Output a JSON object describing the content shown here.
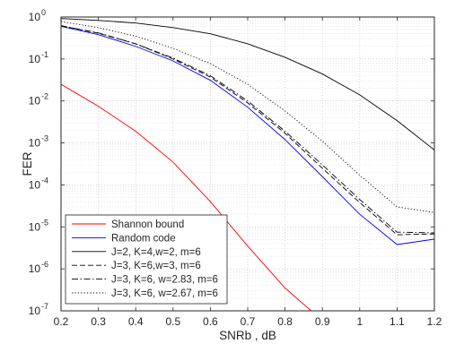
{
  "chart_data": {
    "type": "line",
    "title": "",
    "xlabel": "SNRb , dB",
    "ylabel": "FER",
    "xlim": [
      0.2,
      1.2
    ],
    "ylim_log10": [
      -7,
      0
    ],
    "yscale": "log",
    "grid": "major and minor, dotted",
    "legend_position": "lower-left",
    "x_ticks": [
      "0.2",
      "0.3",
      "0.4",
      "0.5",
      "0.6",
      "0.7",
      "0.8",
      "0.9",
      "1",
      "1.1",
      "1.2"
    ],
    "y_ticks": [
      {
        "base": "10",
        "exp": "0"
      },
      {
        "base": "10",
        "exp": "-1"
      },
      {
        "base": "10",
        "exp": "-2"
      },
      {
        "base": "10",
        "exp": "-3"
      },
      {
        "base": "10",
        "exp": "-4"
      },
      {
        "base": "10",
        "exp": "-5"
      },
      {
        "base": "10",
        "exp": "-6"
      },
      {
        "base": "10",
        "exp": "-7"
      }
    ],
    "series": [
      {
        "name": "Shannon bound",
        "color": "#ff0000",
        "dash": "solid",
        "x": [
          0.2,
          0.3,
          0.4,
          0.5,
          0.6,
          0.7,
          0.8,
          0.87
        ],
        "y": [
          0.025,
          0.0075,
          0.0019,
          0.00035,
          4e-05,
          3.5e-06,
          3.5e-07,
          1e-07
        ]
      },
      {
        "name": "Random code",
        "color": "#0000ff",
        "dash": "solid",
        "x": [
          0.2,
          0.3,
          0.4,
          0.5,
          0.6,
          0.7,
          0.8,
          0.9,
          1.0,
          1.1,
          1.2
        ],
        "y": [
          0.6,
          0.38,
          0.2,
          0.09,
          0.031,
          0.0071,
          0.0012,
          0.000157,
          2e-05,
          3.8e-06,
          5.1e-06
        ]
      },
      {
        "name": "J=2, K=4,w=2, m=6",
        "color": "#000000",
        "dash": "solid",
        "x": [
          0.2,
          0.3,
          0.4,
          0.5,
          0.6,
          0.7,
          0.8,
          0.9,
          1.0,
          1.1,
          1.2
        ],
        "y": [
          0.92,
          0.83,
          0.72,
          0.56,
          0.4,
          0.23,
          0.11,
          0.044,
          0.014,
          0.0034,
          0.00068
        ]
      },
      {
        "name": "J=3, K=6,w=3, m=6",
        "color": "#000000",
        "dash": "dashed",
        "x": [
          0.2,
          0.3,
          0.4,
          0.5,
          0.6,
          0.7,
          0.8,
          0.9,
          1.0,
          1.1,
          1.2
        ],
        "y": [
          0.62,
          0.41,
          0.23,
          0.1,
          0.037,
          0.009,
          0.0017,
          0.00025,
          3.8e-05,
          6.5e-06,
          6.8e-06
        ]
      },
      {
        "name": "J=3,  K=6,  w=2.83, m=6",
        "color": "#000000",
        "dash": "dashdot",
        "x": [
          0.2,
          0.3,
          0.4,
          0.5,
          0.6,
          0.7,
          0.8,
          0.9,
          1.0,
          1.1,
          1.2
        ],
        "y": [
          0.62,
          0.42,
          0.23,
          0.105,
          0.04,
          0.01,
          0.0019,
          0.0003,
          4.5e-05,
          7.5e-06,
          7.2e-06
        ]
      },
      {
        "name": "J=3,  K=6, w=2.67, m=6",
        "color": "#000000",
        "dash": "dotted",
        "x": [
          0.2,
          0.3,
          0.4,
          0.5,
          0.6,
          0.7,
          0.8,
          0.9,
          1.0,
          1.1,
          1.2
        ],
        "y": [
          0.78,
          0.56,
          0.35,
          0.18,
          0.078,
          0.025,
          0.0058,
          0.0011,
          0.00017,
          3e-05,
          2.2e-05
        ]
      }
    ]
  }
}
